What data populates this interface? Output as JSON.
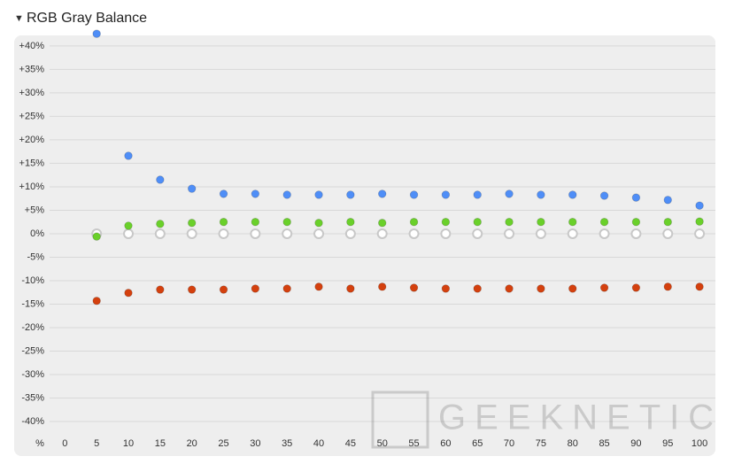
{
  "chart_data": {
    "type": "scatter",
    "title": "RGB Gray Balance",
    "x_label": "%",
    "watermark": "GEEKNETIC",
    "x": [
      5,
      10,
      15,
      20,
      25,
      30,
      35,
      40,
      45,
      50,
      55,
      60,
      65,
      70,
      75,
      80,
      85,
      90,
      95,
      100
    ],
    "series": [
      {
        "color": "#c8c8c8",
        "values": [
          0,
          0,
          0,
          0,
          0,
          0,
          0,
          0,
          0,
          0,
          0,
          0,
          0,
          0,
          0,
          0,
          0,
          0,
          0,
          0
        ]
      },
      {
        "color": "#6ad02a",
        "values": [
          -0.6,
          1.7,
          2.1,
          2.3,
          2.5,
          2.5,
          2.5,
          2.3,
          2.5,
          2.3,
          2.5,
          2.5,
          2.5,
          2.5,
          2.5,
          2.5,
          2.5,
          2.5,
          2.5,
          2.6
        ]
      },
      {
        "color": "#4f8ef7",
        "values": [
          42.6,
          16.6,
          11.5,
          9.6,
          8.5,
          8.5,
          8.3,
          8.3,
          8.3,
          8.5,
          8.3,
          8.3,
          8.3,
          8.5,
          8.3,
          8.3,
          8.1,
          7.7,
          7.2,
          6.0
        ]
      },
      {
        "color": "#d4400e",
        "values": [
          -14.3,
          -12.6,
          -11.9,
          -11.9,
          -11.9,
          -11.7,
          -11.7,
          -11.3,
          -11.7,
          -11.3,
          -11.5,
          -11.7,
          -11.7,
          -11.7,
          -11.7,
          -11.7,
          -11.5,
          -11.5,
          -11.3,
          -11.3
        ]
      }
    ],
    "xlim": [
      -8,
      102.5
    ],
    "xticks": [
      0,
      5,
      10,
      15,
      20,
      25,
      30,
      35,
      40,
      45,
      50,
      55,
      60,
      65,
      70,
      75,
      80,
      85,
      90,
      95,
      100
    ],
    "ylim": [
      -45,
      43
    ],
    "yticks": [
      {
        "value": 40,
        "label": "+40%"
      },
      {
        "value": 35,
        "label": "+35%"
      },
      {
        "value": 30,
        "label": "+30%"
      },
      {
        "value": 25,
        "label": "+25%"
      },
      {
        "value": 20,
        "label": "+20%"
      },
      {
        "value": 15,
        "label": "+15%"
      },
      {
        "value": 10,
        "label": "+10%"
      },
      {
        "value": 5,
        "label": "+5%"
      },
      {
        "value": 0,
        "label": "0%"
      },
      {
        "value": -5,
        "label": "-5%"
      },
      {
        "value": -10,
        "label": "-10%"
      },
      {
        "value": -15,
        "label": "-15%"
      },
      {
        "value": -20,
        "label": "-20%"
      },
      {
        "value": -25,
        "label": "-25%"
      },
      {
        "value": -30,
        "label": "-30%"
      },
      {
        "value": -35,
        "label": "-35%"
      },
      {
        "value": -40,
        "label": "-40%"
      }
    ],
    "grid": true
  }
}
